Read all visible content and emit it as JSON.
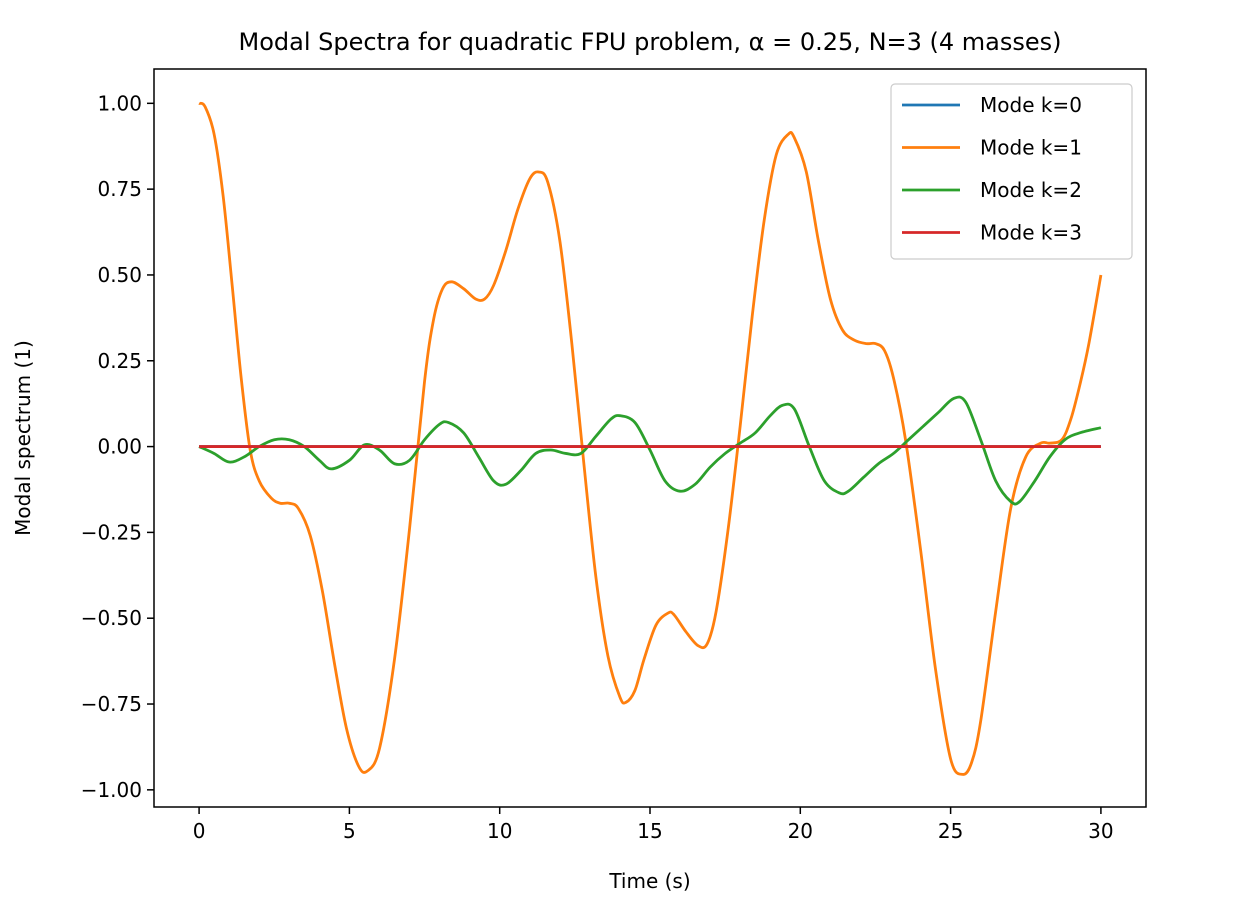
{
  "chart_data": {
    "type": "line",
    "title": "Modal Spectra for quadratic FPU problem, α = 0.25, N=3 (4 masses)",
    "xlabel": "Time (s)",
    "ylabel": "Modal spectrum (1)",
    "xlim": [
      -1.5,
      31.5
    ],
    "ylim": [
      -1.05,
      1.1
    ],
    "xticks": [
      0,
      5,
      10,
      15,
      20,
      25,
      30
    ],
    "xtick_labels": [
      "0",
      "5",
      "10",
      "15",
      "20",
      "25",
      "30"
    ],
    "yticks": [
      1.0,
      0.75,
      0.5,
      0.25,
      0.0,
      -0.25,
      -0.5,
      -0.75,
      -1.0
    ],
    "ytick_labels": [
      "1.00",
      "0.75",
      "0.50",
      "0.25",
      "0.00",
      "−0.25",
      "−0.50",
      "−0.75",
      "−1.00"
    ],
    "grid": false,
    "legend_position": "top-right",
    "series": [
      {
        "name": "Mode k=0",
        "color": "#1f77b4",
        "x": [
          0,
          30
        ],
        "y": [
          0,
          0
        ]
      },
      {
        "name": "Mode k=1",
        "color": "#ff7f0e",
        "x": [
          0,
          0.2,
          0.5,
          0.8,
          1.1,
          1.4,
          1.7,
          2.0,
          2.4,
          2.7,
          3.0,
          3.3,
          3.7,
          4.1,
          4.5,
          4.9,
          5.3,
          5.6,
          6.0,
          6.5,
          7.0,
          7.5,
          7.8,
          8.1,
          8.4,
          8.8,
          9.2,
          9.5,
          9.8,
          10.2,
          10.6,
          11.0,
          11.3,
          11.6,
          12.0,
          12.4,
          12.8,
          13.2,
          13.6,
          14.0,
          14.2,
          14.5,
          14.8,
          15.2,
          15.6,
          15.8,
          16.2,
          16.6,
          16.9,
          17.2,
          17.6,
          18.0,
          18.4,
          18.8,
          19.2,
          19.6,
          19.8,
          20.2,
          20.6,
          21.0,
          21.4,
          21.8,
          22.2,
          22.5,
          22.8,
          23.1,
          23.5,
          24.0,
          24.5,
          25.0,
          25.4,
          25.7,
          26.0,
          26.5,
          27.0,
          27.5,
          28.0,
          28.3,
          28.7,
          29.0,
          29.3,
          29.6,
          30.0
        ],
        "y": [
          1.0,
          0.99,
          0.91,
          0.73,
          0.47,
          0.2,
          -0.01,
          -0.1,
          -0.15,
          -0.165,
          -0.165,
          -0.18,
          -0.26,
          -0.42,
          -0.63,
          -0.82,
          -0.93,
          -0.945,
          -0.88,
          -0.62,
          -0.24,
          0.19,
          0.37,
          0.46,
          0.48,
          0.46,
          0.43,
          0.43,
          0.47,
          0.57,
          0.69,
          0.78,
          0.8,
          0.77,
          0.6,
          0.3,
          -0.05,
          -0.38,
          -0.61,
          -0.73,
          -0.745,
          -0.71,
          -0.62,
          -0.52,
          -0.485,
          -0.49,
          -0.54,
          -0.58,
          -0.575,
          -0.48,
          -0.24,
          0.06,
          0.38,
          0.66,
          0.85,
          0.91,
          0.9,
          0.8,
          0.6,
          0.43,
          0.34,
          0.31,
          0.3,
          0.3,
          0.28,
          0.2,
          0.02,
          -0.3,
          -0.65,
          -0.91,
          -0.955,
          -0.92,
          -0.8,
          -0.48,
          -0.18,
          -0.03,
          0.01,
          0.01,
          0.02,
          0.08,
          0.18,
          0.3,
          0.5
        ]
      },
      {
        "name": "Mode k=2",
        "color": "#2ca02c",
        "x": [
          0,
          0.5,
          1.0,
          1.5,
          2.0,
          2.5,
          3.0,
          3.5,
          4.0,
          4.4,
          5.0,
          5.5,
          6.0,
          6.5,
          7.0,
          7.5,
          8.0,
          8.3,
          8.8,
          9.3,
          9.8,
          10.2,
          10.7,
          11.2,
          11.7,
          12.2,
          12.7,
          13.2,
          13.7,
          14.0,
          14.5,
          15.0,
          15.5,
          16.0,
          16.5,
          17.0,
          17.5,
          18.0,
          18.5,
          19.0,
          19.4,
          19.8,
          20.3,
          20.8,
          21.3,
          21.6,
          22.1,
          22.6,
          23.1,
          23.6,
          24.1,
          24.6,
          25.1,
          25.5,
          26.0,
          26.5,
          27.0,
          27.3,
          27.8,
          28.3,
          28.8,
          29.3,
          30.0
        ],
        "y": [
          0.0,
          -0.02,
          -0.045,
          -0.03,
          0.0,
          0.02,
          0.02,
          0.0,
          -0.04,
          -0.065,
          -0.04,
          0.005,
          -0.01,
          -0.05,
          -0.04,
          0.02,
          0.065,
          0.07,
          0.04,
          -0.03,
          -0.1,
          -0.11,
          -0.07,
          -0.02,
          -0.01,
          -0.02,
          -0.02,
          0.03,
          0.08,
          0.09,
          0.07,
          -0.01,
          -0.1,
          -0.13,
          -0.11,
          -0.06,
          -0.02,
          0.01,
          0.04,
          0.09,
          0.12,
          0.11,
          0.0,
          -0.1,
          -0.135,
          -0.13,
          -0.09,
          -0.05,
          -0.02,
          0.02,
          0.06,
          0.1,
          0.14,
          0.13,
          0.02,
          -0.1,
          -0.16,
          -0.16,
          -0.1,
          -0.03,
          0.02,
          0.04,
          0.055
        ]
      },
      {
        "name": "Mode k=3",
        "color": "#d62728",
        "x": [
          0,
          30
        ],
        "y": [
          0,
          0
        ]
      }
    ]
  }
}
